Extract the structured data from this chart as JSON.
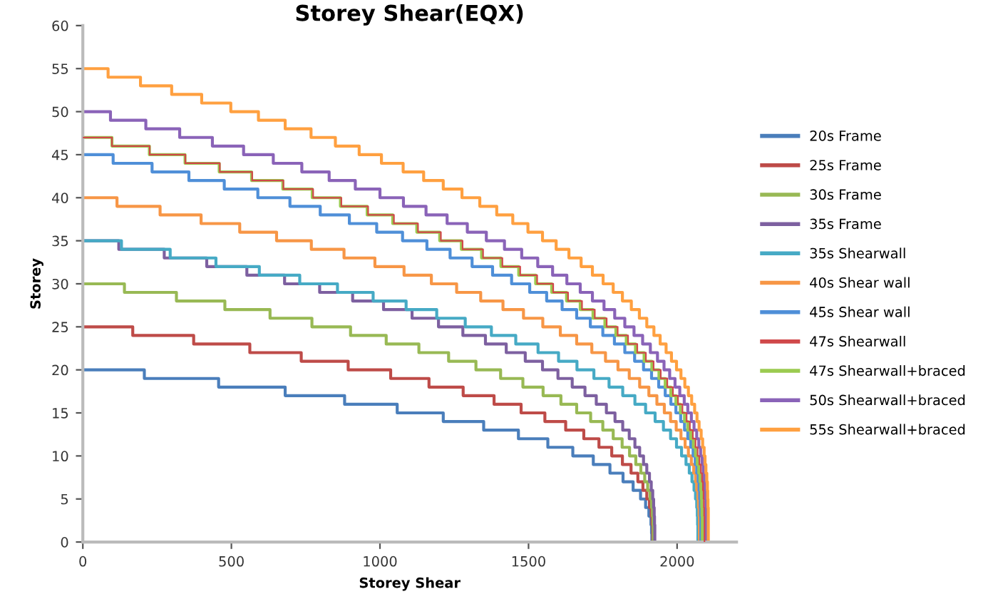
{
  "chart_data": {
    "type": "step",
    "title": "Storey Shear(EQX)",
    "xlabel": "Storey Shear",
    "ylabel": "Storey",
    "xlim": [
      0,
      2200
    ],
    "xticks": [
      0,
      500,
      1000,
      1500,
      2000
    ],
    "ylim": [
      0,
      60
    ],
    "yticks": [
      0,
      5,
      10,
      15,
      20,
      25,
      30,
      35,
      40,
      45,
      50,
      55,
      60
    ],
    "grid": false,
    "legend": "right",
    "series": [
      {
        "name": "20s Frame",
        "color": "#4a7ebb",
        "x": [
          0,
          207,
          457,
          681,
          881,
          1058,
          1213,
          1349,
          1466,
          1565,
          1649,
          1718,
          1774,
          1818,
          1852,
          1877,
          1894,
          1905,
          1912,
          1914,
          1915
        ],
        "values": [
          20,
          19,
          18,
          17,
          16,
          15,
          14,
          13,
          12,
          11,
          10,
          9,
          8,
          7,
          6,
          5,
          4,
          3,
          2,
          1,
          0
        ]
      },
      {
        "name": "25s Frame",
        "color": "#be4b48",
        "x": [
          0,
          168,
          373,
          562,
          735,
          893,
          1036,
          1165,
          1280,
          1384,
          1475,
          1555,
          1625,
          1686,
          1737,
          1780,
          1816,
          1845,
          1868,
          1885,
          1898,
          1907,
          1913,
          1916,
          1918,
          1918
        ],
        "values": [
          25,
          24,
          23,
          22,
          21,
          20,
          19,
          18,
          17,
          16,
          15,
          14,
          13,
          12,
          11,
          10,
          9,
          8,
          7,
          6,
          5,
          4,
          3,
          2,
          1,
          0
        ]
      },
      {
        "name": "30s Frame",
        "color": "#98b954",
        "x": [
          0,
          140,
          315,
          478,
          630,
          771,
          901,
          1021,
          1131,
          1231,
          1323,
          1406,
          1481,
          1549,
          1609,
          1662,
          1709,
          1750,
          1785,
          1815,
          1840,
          1861,
          1878,
          1891,
          1901,
          1909,
          1914,
          1917,
          1919,
          1920,
          1920
        ],
        "values": [
          30,
          29,
          28,
          27,
          26,
          25,
          24,
          23,
          22,
          21,
          20,
          19,
          18,
          17,
          16,
          15,
          14,
          13,
          12,
          11,
          10,
          9,
          8,
          7,
          6,
          5,
          4,
          3,
          2,
          1,
          0
        ]
      },
      {
        "name": "35s Frame",
        "color": "#7d60a0",
        "x": [
          0,
          121,
          274,
          417,
          552,
          679,
          797,
          908,
          1012,
          1108,
          1197,
          1279,
          1355,
          1425,
          1489,
          1547,
          1599,
          1647,
          1690,
          1728,
          1762,
          1791,
          1817,
          1839,
          1858,
          1874,
          1887,
          1898,
          1907,
          1913,
          1918,
          1921,
          1923,
          1924,
          1925,
          1925
        ],
        "values": [
          35,
          34,
          33,
          32,
          31,
          30,
          29,
          28,
          27,
          26,
          25,
          24,
          23,
          22,
          21,
          20,
          19,
          18,
          17,
          16,
          15,
          14,
          13,
          12,
          11,
          10,
          9,
          8,
          7,
          6,
          5,
          4,
          3,
          2,
          1,
          0
        ]
      },
      {
        "name": "35s Shearwall",
        "color": "#46aac5",
        "x": [
          0,
          130,
          294,
          448,
          594,
          730,
          857,
          977,
          1088,
          1191,
          1287,
          1375,
          1457,
          1532,
          1601,
          1663,
          1720,
          1771,
          1817,
          1858,
          1894,
          1926,
          1954,
          1978,
          1998,
          2015,
          2030,
          2041,
          2050,
          2057,
          2062,
          2066,
          2068,
          2069,
          2070,
          2070
        ],
        "values": [
          35,
          34,
          33,
          32,
          31,
          30,
          29,
          28,
          27,
          26,
          25,
          24,
          23,
          22,
          21,
          20,
          19,
          18,
          17,
          16,
          15,
          14,
          13,
          12,
          11,
          10,
          9,
          8,
          7,
          6,
          5,
          4,
          3,
          2,
          1,
          0
        ]
      },
      {
        "name": "40s Shear wall",
        "color": "#f79646",
        "x": [
          0,
          115,
          260,
          398,
          528,
          652,
          769,
          879,
          983,
          1081,
          1173,
          1258,
          1339,
          1414,
          1483,
          1548,
          1607,
          1662,
          1713,
          1759,
          1801,
          1839,
          1874,
          1905,
          1932,
          1957,
          1978,
          1997,
          2013,
          2027,
          2038,
          2048,
          2056,
          2062,
          2066,
          2070,
          2072,
          2074,
          2075,
          2075,
          2075
        ],
        "values": [
          40,
          39,
          38,
          37,
          36,
          35,
          34,
          33,
          32,
          31,
          30,
          29,
          28,
          27,
          26,
          25,
          24,
          23,
          22,
          21,
          20,
          19,
          18,
          17,
          16,
          15,
          14,
          13,
          12,
          11,
          10,
          9,
          8,
          7,
          6,
          5,
          4,
          3,
          2,
          1,
          0
        ]
      },
      {
        "name": "45s Shear wall",
        "color": "#4f8fd8",
        "x": [
          0,
          102,
          233,
          357,
          476,
          589,
          697,
          799,
          897,
          989,
          1076,
          1158,
          1236,
          1310,
          1379,
          1443,
          1504,
          1561,
          1613,
          1662,
          1708,
          1750,
          1789,
          1824,
          1857,
          1887,
          1914,
          1938,
          1960,
          1979,
          1996,
          2012,
          2025,
          2036,
          2046,
          2054,
          2061,
          2066,
          2071,
          2074,
          2076,
          2078,
          2079,
          2080,
          2080,
          2080
        ],
        "values": [
          45,
          44,
          43,
          42,
          41,
          40,
          39,
          38,
          37,
          36,
          35,
          34,
          33,
          32,
          31,
          30,
          29,
          28,
          27,
          26,
          25,
          24,
          23,
          22,
          21,
          20,
          19,
          18,
          17,
          16,
          15,
          14,
          13,
          12,
          11,
          10,
          9,
          8,
          7,
          6,
          5,
          4,
          3,
          2,
          1,
          0
        ]
      },
      {
        "name": "47s Shearwall",
        "color": "#d0484a",
        "x": [
          0,
          98,
          225,
          345,
          461,
          570,
          675,
          775,
          870,
          960,
          1047,
          1128,
          1205,
          1278,
          1347,
          1412,
          1472,
          1529,
          1583,
          1633,
          1680,
          1723,
          1763,
          1800,
          1835,
          1866,
          1895,
          1921,
          1945,
          1967,
          1986,
          2003,
          2018,
          2032,
          2043,
          2053,
          2062,
          2069,
          2075,
          2080,
          2084,
          2087,
          2089,
          2090,
          2091,
          2092,
          2092,
          2092
        ],
        "values": [
          47,
          46,
          45,
          44,
          43,
          42,
          41,
          40,
          39,
          38,
          37,
          36,
          35,
          34,
          33,
          32,
          31,
          30,
          29,
          28,
          27,
          26,
          25,
          24,
          23,
          22,
          21,
          20,
          19,
          18,
          17,
          16,
          15,
          14,
          13,
          12,
          11,
          10,
          9,
          8,
          7,
          6,
          5,
          4,
          3,
          2,
          1,
          0
        ]
      },
      {
        "name": "47s Shearwall+braced",
        "color": "#9bcb50",
        "x": [
          0,
          98,
          224,
          344,
          459,
          568,
          673,
          772,
          867,
          957,
          1043,
          1124,
          1201,
          1274,
          1342,
          1407,
          1467,
          1524,
          1578,
          1628,
          1674,
          1717,
          1757,
          1794,
          1829,
          1860,
          1889,
          1915,
          1939,
          1960,
          1979,
          1996,
          2011,
          2025,
          2036,
          2046,
          2055,
          2062,
          2068,
          2073,
          2077,
          2080,
          2082,
          2083,
          2084,
          2085,
          2085,
          2085
        ],
        "values": [
          47,
          46,
          45,
          44,
          43,
          42,
          41,
          40,
          39,
          38,
          37,
          36,
          35,
          34,
          33,
          32,
          31,
          30,
          29,
          28,
          27,
          26,
          25,
          24,
          23,
          22,
          21,
          20,
          19,
          18,
          17,
          16,
          15,
          14,
          13,
          12,
          11,
          10,
          9,
          8,
          7,
          6,
          5,
          4,
          3,
          2,
          1,
          0
        ]
      },
      {
        "name": "50s Shearwall+braced",
        "color": "#8a63b8",
        "x": [
          0,
          93,
          212,
          326,
          436,
          541,
          641,
          737,
          829,
          917,
          1000,
          1079,
          1155,
          1226,
          1294,
          1358,
          1419,
          1477,
          1531,
          1581,
          1629,
          1674,
          1715,
          1754,
          1790,
          1824,
          1855,
          1884,
          1910,
          1934,
          1956,
          1975,
          1993,
          2009,
          2024,
          2036,
          2048,
          2057,
          2066,
          2073,
          2079,
          2084,
          2088,
          2091,
          2093,
          2095,
          2097,
          2097,
          2098,
          2098,
          2098
        ],
        "values": [
          50,
          49,
          48,
          47,
          46,
          45,
          44,
          43,
          42,
          41,
          40,
          39,
          38,
          37,
          36,
          35,
          34,
          33,
          32,
          31,
          30,
          29,
          28,
          27,
          26,
          25,
          24,
          23,
          22,
          21,
          20,
          19,
          18,
          17,
          16,
          15,
          14,
          13,
          12,
          11,
          10,
          9,
          8,
          7,
          6,
          5,
          4,
          3,
          2,
          1,
          0
        ]
      },
      {
        "name": "55s Shearwall+braced",
        "color": "#ffa040",
        "x": [
          0,
          85,
          194,
          299,
          400,
          498,
          591,
          681,
          768,
          850,
          930,
          1005,
          1078,
          1147,
          1213,
          1276,
          1336,
          1393,
          1447,
          1498,
          1547,
          1593,
          1636,
          1677,
          1715,
          1751,
          1785,
          1816,
          1846,
          1873,
          1898,
          1922,
          1943,
          1963,
          1981,
          1998,
          2013,
          2026,
          2038,
          2049,
          2059,
          2067,
          2074,
          2081,
          2086,
          2091,
          2094,
          2097,
          2100,
          2102,
          2103,
          2104,
          2105,
          2105,
          2105,
          2105
        ],
        "values": [
          55,
          54,
          53,
          52,
          51,
          50,
          49,
          48,
          47,
          46,
          45,
          44,
          43,
          42,
          41,
          40,
          39,
          38,
          37,
          36,
          35,
          34,
          33,
          32,
          31,
          30,
          29,
          28,
          27,
          26,
          25,
          24,
          23,
          22,
          21,
          20,
          19,
          18,
          17,
          16,
          15,
          14,
          13,
          12,
          11,
          10,
          9,
          8,
          7,
          6,
          5,
          4,
          3,
          2,
          1,
          0
        ]
      }
    ]
  }
}
